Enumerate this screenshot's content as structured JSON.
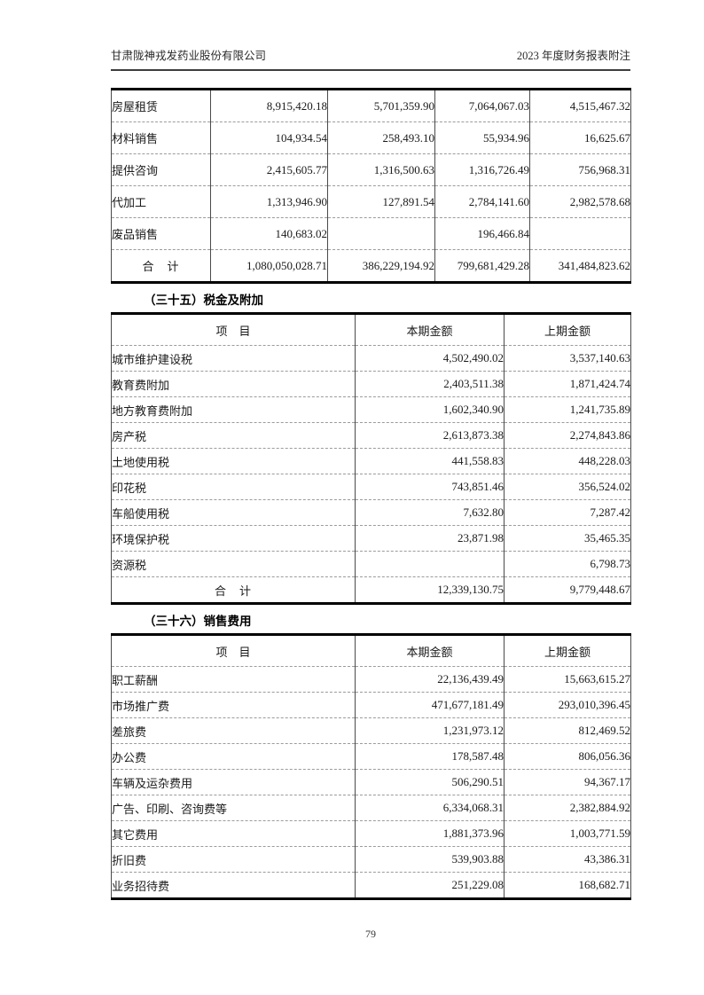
{
  "header": {
    "company": "甘肃陇神戎发药业股份有限公司",
    "doc_title": "2023 年度财务报表附注"
  },
  "revenue_table": {
    "rows": [
      {
        "cells": [
          "房屋租赁",
          "8,915,420.18",
          "5,701,359.90",
          "7,064,067.03",
          "4,515,467.32"
        ]
      },
      {
        "cells": [
          "材料销售",
          "104,934.54",
          "258,493.10",
          "55,934.96",
          "16,625.67"
        ]
      },
      {
        "cells": [
          "提供咨询",
          "2,415,605.77",
          "1,316,500.63",
          "1,316,726.49",
          "756,968.31"
        ]
      },
      {
        "cells": [
          "代加工",
          "1,313,946.90",
          "127,891.54",
          "2,784,141.60",
          "2,982,578.68"
        ]
      },
      {
        "cells": [
          "废品销售",
          "140,683.02",
          "",
          "196,466.84",
          ""
        ]
      },
      {
        "cells": [
          "合　计",
          "1,080,050,028.71",
          "386,229,194.92",
          "799,681,429.28",
          "341,484,823.62"
        ],
        "total": true
      }
    ]
  },
  "section35": {
    "heading": "（三十五）税金及附加",
    "columns": [
      "项　目",
      "本期金额",
      "上期金额"
    ],
    "rows": [
      {
        "cells": [
          "城市维护建设税",
          "4,502,490.02",
          "3,537,140.63"
        ]
      },
      {
        "cells": [
          "教育费附加",
          "2,403,511.38",
          "1,871,424.74"
        ]
      },
      {
        "cells": [
          "地方教育费附加",
          "1,602,340.90",
          "1,241,735.89"
        ]
      },
      {
        "cells": [
          "房产税",
          "2,613,873.38",
          "2,274,843.86"
        ]
      },
      {
        "cells": [
          "土地使用税",
          "441,558.83",
          "448,228.03"
        ]
      },
      {
        "cells": [
          "印花税",
          "743,851.46",
          "356,524.02"
        ]
      },
      {
        "cells": [
          "车船使用税",
          "7,632.80",
          "7,287.42"
        ]
      },
      {
        "cells": [
          "环境保护税",
          "23,871.98",
          "35,465.35"
        ]
      },
      {
        "cells": [
          "资源税",
          "",
          "6,798.73"
        ]
      },
      {
        "cells": [
          "合　计",
          "12,339,130.75",
          "9,779,448.67"
        ],
        "total": true
      }
    ]
  },
  "section36": {
    "heading": "（三十六）销售费用",
    "columns": [
      "项　目",
      "本期金额",
      "上期金额"
    ],
    "rows": [
      {
        "cells": [
          "职工薪酬",
          "22,136,439.49",
          "15,663,615.27"
        ]
      },
      {
        "cells": [
          "市场推广费",
          "471,677,181.49",
          "293,010,396.45"
        ]
      },
      {
        "cells": [
          "差旅费",
          "1,231,973.12",
          "812,469.52"
        ]
      },
      {
        "cells": [
          "办公费",
          "178,587.48",
          "806,056.36"
        ]
      },
      {
        "cells": [
          "车辆及运杂费用",
          "506,290.51",
          "94,367.17"
        ]
      },
      {
        "cells": [
          "广告、印刷、咨询费等",
          "6,334,068.31",
          "2,382,884.92"
        ]
      },
      {
        "cells": [
          "其它费用",
          "1,881,373.96",
          "1,003,771.59"
        ]
      },
      {
        "cells": [
          "折旧费",
          "539,903.88",
          "43,386.31"
        ]
      },
      {
        "cells": [
          "业务招待费",
          "251,229.08",
          "168,682.71"
        ]
      }
    ]
  },
  "footer": {
    "page_number": "79"
  }
}
